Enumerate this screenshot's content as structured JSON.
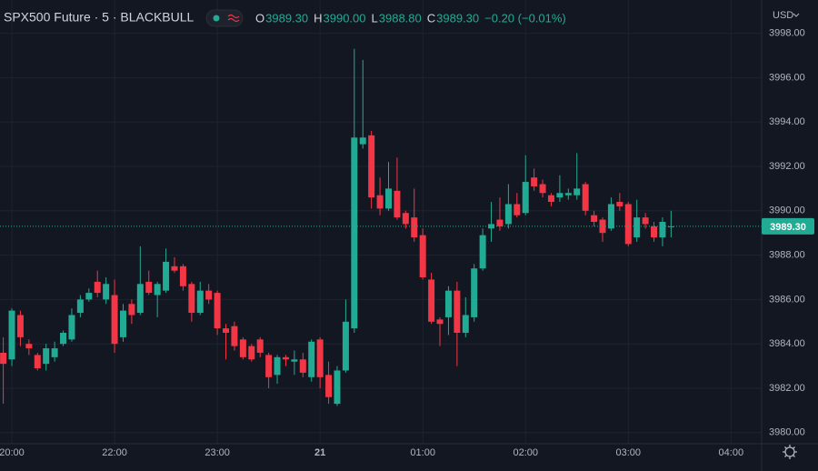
{
  "chart_data": {
    "type": "candlestick",
    "title": "SPX500 Future · 5 · BLACKBULL",
    "currency": "USD",
    "ohlc_legend": [
      {
        "key": "O",
        "value": "3989.30"
      },
      {
        "key": "H",
        "value": "3990.00"
      },
      {
        "key": "L",
        "value": "3988.80"
      },
      {
        "key": "C",
        "value": "3989.30"
      }
    ],
    "change": "−0.20 (−0.01%)",
    "up_color": "#22ab94",
    "down_color": "#f23645",
    "grid": true,
    "categories": [
      null,
      "20:00",
      null,
      null,
      null,
      null,
      null,
      null,
      null,
      null,
      null,
      null,
      null,
      "22:00",
      null,
      null,
      null,
      null,
      null,
      null,
      null,
      null,
      null,
      null,
      null,
      "23:00",
      null,
      null,
      null,
      null,
      null,
      null,
      null,
      null,
      null,
      null,
      null,
      "21",
      null,
      null,
      null,
      null,
      null,
      null,
      null,
      null,
      null,
      null,
      null,
      "01:00",
      null,
      null,
      null,
      null,
      null,
      null,
      null,
      null,
      null,
      null,
      null,
      "02:00",
      null,
      null,
      null,
      null,
      null,
      null,
      null,
      null,
      null,
      null,
      null,
      "03:00",
      null,
      null,
      null,
      null,
      null,
      null,
      null,
      null,
      null,
      null,
      null,
      "04:00"
    ],
    "open": [
      3983.6,
      3983.3,
      3985.3,
      3984.0,
      3983.5,
      3983.1,
      3983.4,
      3984.0,
      3984.2,
      3985.4,
      3986.0,
      3986.8,
      3986.0,
      3986.2,
      3984.3,
      3985.8,
      3985.4,
      3986.8,
      3986.2,
      3986.4,
      3987.5,
      3987.5,
      3986.7,
      3985.4,
      3986.4,
      3986.3,
      3984.7,
      3984.8,
      3984.2,
      3983.9,
      3984.2,
      3983.5,
      3982.6,
      3983.4,
      3983.2,
      3983.3,
      3982.5,
      3984.2,
      3982.6,
      3981.3,
      3982.8,
      3984.7,
      3993.0,
      3993.4,
      3990.7,
      3990.1,
      3990.9,
      3989.9,
      3989.7,
      3988.9,
      3986.9,
      3985.1,
      3985.2,
      3986.4,
      3984.5,
      3985.2,
      3987.4,
      3989.2,
      3989.6,
      3989.4,
      3990.3,
      3989.9,
      3991.5,
      3991.2,
      3990.7,
      3990.6,
      3990.7,
      3990.7,
      3991.2,
      3989.8,
      3989.6,
      3989.2,
      3990.4,
      3990.3,
      3988.8,
      3989.7,
      3989.3,
      3988.8,
      3989.3,
      null,
      null,
      null,
      null,
      null,
      null,
      null
    ],
    "high": [
      3984.3,
      3985.6,
      3985.5,
      3984.2,
      3983.6,
      3984.0,
      3984.1,
      3984.6,
      3985.6,
      3986.2,
      3986.5,
      3987.3,
      3987.0,
      3986.9,
      3985.8,
      3986.0,
      3988.4,
      3987.3,
      3986.8,
      3988.3,
      3987.9,
      3987.6,
      3986.8,
      3986.8,
      3986.7,
      3986.4,
      3984.9,
      3985.0,
      3984.3,
      3984.0,
      3984.3,
      3983.6,
      3983.5,
      3983.5,
      3983.7,
      3983.6,
      3984.2,
      3984.3,
      3983.2,
      3983.0,
      3986.0,
      3997.3,
      3996.8,
      3993.6,
      3991.5,
      3992.2,
      3992.4,
      3990.0,
      3991.0,
      3989.2,
      3987.2,
      3985.2,
      3986.6,
      3986.8,
      3986.1,
      3987.6,
      3989.2,
      3990.4,
      3990.6,
      3991.2,
      3990.8,
      3992.5,
      3991.9,
      3991.4,
      3990.8,
      3991.6,
      3991.0,
      3992.6,
      3991.3,
      3990.0,
      3989.7,
      3990.6,
      3990.8,
      3990.4,
      3990.5,
      3989.9,
      3989.5,
      3989.7,
      3990.0,
      null,
      null,
      null,
      null,
      null,
      null,
      null
    ],
    "low": [
      3981.3,
      3983.0,
      3983.9,
      3983.5,
      3982.8,
      3982.8,
      3983.2,
      3983.9,
      3984.1,
      3985.2,
      3985.9,
      3986.1,
      3985.8,
      3983.6,
      3984.1,
      3984.9,
      3985.3,
      3986.2,
      3985.2,
      3986.3,
      3987.2,
      3986.4,
      3985.0,
      3985.3,
      3985.8,
      3984.4,
      3983.3,
      3983.7,
      3983.3,
      3983.2,
      3983.4,
      3982.0,
      3982.2,
      3983.0,
      3982.6,
      3982.5,
      3982.3,
      3982.0,
      3981.3,
      3981.2,
      3982.7,
      3984.5,
      3992.8,
      3990.1,
      3989.8,
      3990.0,
      3989.6,
      3989.2,
      3988.6,
      3986.9,
      3984.9,
      3983.9,
      3984.4,
      3983.0,
      3984.3,
      3985.0,
      3987.3,
      3988.6,
      3989.1,
      3989.2,
      3989.7,
      3989.8,
      3990.9,
      3990.6,
      3990.2,
      3990.4,
      3990.5,
      3990.5,
      3989.8,
      3989.3,
      3988.6,
      3989.1,
      3990.0,
      3988.4,
      3988.6,
      3989.2,
      3988.6,
      3988.4,
      3988.8,
      null,
      null,
      null,
      null,
      null,
      null,
      null
    ],
    "close": [
      3983.1,
      3985.5,
      3984.3,
      3983.8,
      3982.9,
      3983.8,
      3983.8,
      3984.5,
      3985.3,
      3986.0,
      3986.3,
      3986.3,
      3986.7,
      3984.0,
      3985.5,
      3985.3,
      3986.7,
      3986.3,
      3986.7,
      3987.7,
      3987.3,
      3986.6,
      3985.4,
      3986.4,
      3986.0,
      3984.7,
      3984.5,
      3983.9,
      3983.4,
      3983.3,
      3983.6,
      3982.5,
      3983.4,
      3983.3,
      3983.3,
      3982.7,
      3984.1,
      3982.5,
      3981.6,
      3982.8,
      3985.0,
      3993.3,
      3993.3,
      3990.6,
      3990.1,
      3991.0,
      3989.7,
      3989.4,
      3988.8,
      3987.0,
      3985.0,
      3984.9,
      3986.4,
      3984.5,
      3985.3,
      3987.4,
      3988.9,
      3989.4,
      3989.3,
      3990.3,
      3989.8,
      3991.3,
      3991.1,
      3990.8,
      3990.4,
      3990.8,
      3990.8,
      3991.0,
      3990.0,
      3989.5,
      3989.0,
      3990.3,
      3990.2,
      3988.5,
      3989.7,
      3989.4,
      3988.8,
      3989.5,
      3989.3,
      null,
      null,
      null,
      null,
      null,
      null,
      null
    ],
    "last_price": {
      "value": 3989.3,
      "label": "3989.30"
    },
    "ylim": [
      3979.5,
      3999.5
    ],
    "yticks": [
      {
        "value": 3980,
        "label": "3980.00"
      },
      {
        "value": 3982,
        "label": "3982.00"
      },
      {
        "value": 3984,
        "label": "3984.00"
      },
      {
        "value": 3986,
        "label": "3986.00"
      },
      {
        "value": 3988,
        "label": "3988.00"
      },
      {
        "value": 3990,
        "label": "3990.00"
      },
      {
        "value": 3992,
        "label": "3992.00"
      },
      {
        "value": 3994,
        "label": "3994.00"
      },
      {
        "value": 3996,
        "label": "3996.00"
      },
      {
        "value": 3998,
        "label": "3998.00"
      }
    ]
  }
}
